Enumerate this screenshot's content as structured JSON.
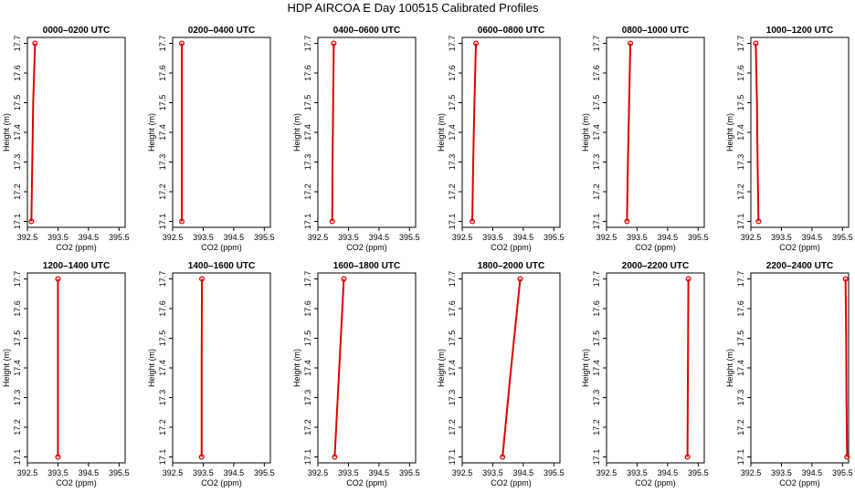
{
  "figure": {
    "title": "HDP AIRCOA E  Day 100515  Calibrated Profiles"
  },
  "colors": {
    "series": "#dd0000",
    "axes": "#000000",
    "background": "#ffffff"
  },
  "chart_data": [
    {
      "type": "line",
      "title": "0000–0200 UTC",
      "xlabel": "CO2 (ppm)",
      "ylabel": "Height (m)",
      "xlim": [
        392.5,
        395.7
      ],
      "ylim": [
        17.08,
        17.72
      ],
      "xticks": [
        "392.5",
        "393.5",
        "394.5",
        "395.5"
      ],
      "yticks": [
        "17.1",
        "17.2",
        "17.3",
        "17.4",
        "17.5",
        "17.6",
        "17.7"
      ],
      "x": [
        392.63,
        392.66,
        392.69,
        392.75
      ],
      "y": [
        17.1,
        17.3,
        17.5,
        17.7
      ],
      "marker_x": [
        392.63,
        392.75
      ],
      "marker_y": [
        17.1,
        17.7
      ],
      "grid": false
    },
    {
      "type": "line",
      "title": "0200–0400 UTC",
      "xlabel": "CO2 (ppm)",
      "ylabel": "Height (m)",
      "xlim": [
        392.5,
        395.7
      ],
      "ylim": [
        17.08,
        17.72
      ],
      "xticks": [
        "392.5",
        "393.5",
        "394.5",
        "395.5"
      ],
      "yticks": [
        "17.1",
        "17.2",
        "17.3",
        "17.4",
        "17.5",
        "17.6",
        "17.7"
      ],
      "x": [
        392.8,
        392.8,
        392.8
      ],
      "y": [
        17.1,
        17.4,
        17.7
      ],
      "marker_x": [
        392.8,
        392.8
      ],
      "marker_y": [
        17.1,
        17.7
      ],
      "grid": false
    },
    {
      "type": "line",
      "title": "0400–0600 UTC",
      "xlabel": "CO2 (ppm)",
      "ylabel": "Height (m)",
      "xlim": [
        392.5,
        395.7
      ],
      "ylim": [
        17.08,
        17.72
      ],
      "xticks": [
        "392.5",
        "393.5",
        "394.5",
        "395.5"
      ],
      "yticks": [
        "17.1",
        "17.2",
        "17.3",
        "17.4",
        "17.5",
        "17.6",
        "17.7"
      ],
      "x": [
        392.97,
        392.98,
        393.0,
        393.02
      ],
      "y": [
        17.1,
        17.3,
        17.5,
        17.7
      ],
      "marker_x": [
        392.97,
        393.02
      ],
      "marker_y": [
        17.1,
        17.7
      ],
      "grid": false
    },
    {
      "type": "line",
      "title": "0600–0800 UTC",
      "xlabel": "CO2 (ppm)",
      "ylabel": "Height (m)",
      "xlim": [
        392.5,
        395.7
      ],
      "ylim": [
        17.08,
        17.72
      ],
      "xticks": [
        "392.5",
        "393.5",
        "394.5",
        "395.5"
      ],
      "yticks": [
        "17.1",
        "17.2",
        "17.3",
        "17.4",
        "17.5",
        "17.6",
        "17.7"
      ],
      "x": [
        392.83,
        392.86,
        392.9,
        392.95
      ],
      "y": [
        17.1,
        17.3,
        17.5,
        17.7
      ],
      "marker_x": [
        392.83,
        392.95
      ],
      "marker_y": [
        17.1,
        17.7
      ],
      "grid": false
    },
    {
      "type": "line",
      "title": "0800–1000 UTC",
      "xlabel": "CO2 (ppm)",
      "ylabel": "Height (m)",
      "xlim": [
        392.5,
        395.7
      ],
      "ylim": [
        17.08,
        17.72
      ],
      "xticks": [
        "392.5",
        "393.5",
        "394.5",
        "395.5"
      ],
      "yticks": [
        "17.1",
        "17.2",
        "17.3",
        "17.4",
        "17.5",
        "17.6",
        "17.7"
      ],
      "x": [
        393.17,
        393.2,
        393.24,
        393.28
      ],
      "y": [
        17.1,
        17.3,
        17.5,
        17.7
      ],
      "marker_x": [
        393.17,
        393.28
      ],
      "marker_y": [
        17.1,
        17.7
      ],
      "grid": false
    },
    {
      "type": "line",
      "title": "1000–1200 UTC",
      "xlabel": "CO2 (ppm)",
      "ylabel": "Height (m)",
      "xlim": [
        392.5,
        395.7
      ],
      "ylim": [
        17.08,
        17.72
      ],
      "xticks": [
        "392.5",
        "393.5",
        "394.5",
        "395.5"
      ],
      "yticks": [
        "17.1",
        "17.2",
        "17.3",
        "17.4",
        "17.5",
        "17.6",
        "17.7"
      ],
      "x": [
        392.75,
        392.72,
        392.7,
        392.66
      ],
      "y": [
        17.1,
        17.3,
        17.5,
        17.7
      ],
      "marker_x": [
        392.75,
        392.66
      ],
      "marker_y": [
        17.1,
        17.7
      ],
      "grid": false
    },
    {
      "type": "line",
      "title": "1200–1400 UTC",
      "xlabel": "CO2 (ppm)",
      "ylabel": "Height (m)",
      "xlim": [
        392.5,
        395.7
      ],
      "ylim": [
        17.08,
        17.72
      ],
      "xticks": [
        "392.5",
        "393.5",
        "394.5",
        "395.5"
      ],
      "yticks": [
        "17.1",
        "17.2",
        "17.3",
        "17.4",
        "17.5",
        "17.6",
        "17.7"
      ],
      "x": [
        393.5,
        393.5
      ],
      "y": [
        17.1,
        17.7
      ],
      "marker_x": [
        393.5,
        393.5
      ],
      "marker_y": [
        17.1,
        17.7
      ],
      "grid": false
    },
    {
      "type": "line",
      "title": "1400–1600 UTC",
      "xlabel": "CO2 (ppm)",
      "ylabel": "Height (m)",
      "xlim": [
        392.5,
        395.7
      ],
      "ylim": [
        17.08,
        17.72
      ],
      "xticks": [
        "392.5",
        "393.5",
        "394.5",
        "395.5"
      ],
      "yticks": [
        "17.1",
        "17.2",
        "17.3",
        "17.4",
        "17.5",
        "17.6",
        "17.7"
      ],
      "x": [
        393.45,
        393.45,
        393.46
      ],
      "y": [
        17.1,
        17.4,
        17.7
      ],
      "marker_x": [
        393.45,
        393.46
      ],
      "marker_y": [
        17.1,
        17.7
      ],
      "grid": false
    },
    {
      "type": "line",
      "title": "1600–1800 UTC",
      "xlabel": "CO2 (ppm)",
      "ylabel": "Height (m)",
      "xlim": [
        392.5,
        395.7
      ],
      "ylim": [
        17.08,
        17.72
      ],
      "xticks": [
        "392.5",
        "393.5",
        "394.5",
        "395.5"
      ],
      "yticks": [
        "17.1",
        "17.2",
        "17.3",
        "17.4",
        "17.5",
        "17.6",
        "17.7"
      ],
      "x": [
        393.05,
        393.2,
        393.35
      ],
      "y": [
        17.1,
        17.4,
        17.7
      ],
      "marker_x": [
        393.05,
        393.35
      ],
      "marker_y": [
        17.1,
        17.7
      ],
      "grid": false
    },
    {
      "type": "line",
      "title": "1800–2000 UTC",
      "xlabel": "CO2 (ppm)",
      "ylabel": "Height (m)",
      "xlim": [
        392.5,
        395.7
      ],
      "ylim": [
        17.08,
        17.72
      ],
      "xticks": [
        "392.5",
        "393.5",
        "394.5",
        "395.5"
      ],
      "yticks": [
        "17.1",
        "17.2",
        "17.3",
        "17.4",
        "17.5",
        "17.6",
        "17.7"
      ],
      "x": [
        393.82,
        394.1,
        394.4
      ],
      "y": [
        17.1,
        17.4,
        17.7
      ],
      "marker_x": [
        393.82,
        394.4
      ],
      "marker_y": [
        17.1,
        17.7
      ],
      "grid": false
    },
    {
      "type": "line",
      "title": "2000–2200 UTC",
      "xlabel": "CO2 (ppm)",
      "ylabel": "Height (m)",
      "xlim": [
        392.5,
        395.7
      ],
      "ylim": [
        17.08,
        17.72
      ],
      "xticks": [
        "392.5",
        "393.5",
        "394.5",
        "395.5"
      ],
      "yticks": [
        "17.1",
        "17.2",
        "17.3",
        "17.4",
        "17.5",
        "17.6",
        "17.7"
      ],
      "x": [
        395.15,
        395.16,
        395.17,
        395.18
      ],
      "y": [
        17.1,
        17.3,
        17.5,
        17.7
      ],
      "marker_x": [
        395.15,
        395.18
      ],
      "marker_y": [
        17.1,
        17.7
      ],
      "grid": false
    },
    {
      "type": "line",
      "title": "2200–2400 UTC",
      "xlabel": "CO2 (ppm)",
      "ylabel": "Height (m)",
      "xlim": [
        392.5,
        395.7
      ],
      "ylim": [
        17.08,
        17.72
      ],
      "xticks": [
        "392.5",
        "393.5",
        "394.5",
        "395.5"
      ],
      "yticks": [
        "17.1",
        "17.2",
        "17.3",
        "17.4",
        "17.5",
        "17.6",
        "17.7"
      ],
      "x": [
        395.65,
        395.63,
        395.62,
        395.6
      ],
      "y": [
        17.1,
        17.3,
        17.5,
        17.7
      ],
      "marker_x": [
        395.65,
        395.6
      ],
      "marker_y": [
        17.1,
        17.7
      ],
      "grid": false
    }
  ]
}
